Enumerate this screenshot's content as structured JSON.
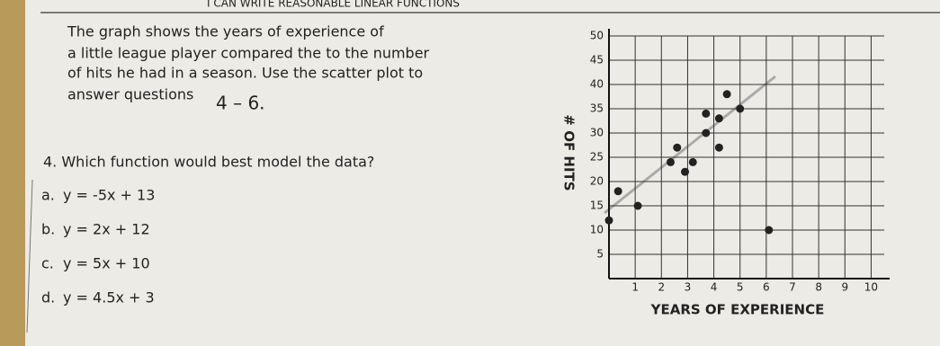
{
  "header": "I CAN WRITE REASONABLE LINEAR FUNCTIONS",
  "intro": [
    "The graph shows the years of experience of",
    "a little league player compared the to the number",
    "of hits he had in a season.  Use the scatter plot to",
    "answer questions"
  ],
  "intro_ref": "4 – 6.",
  "question": "4.  Which function would best model the data?",
  "options": [
    [
      "a.",
      "y = -5x + 13"
    ],
    [
      "b.",
      "y = 2x + 12"
    ],
    [
      "c.",
      "y = 5x + 10"
    ],
    [
      "d.",
      "y = 4.5x + 3"
    ]
  ],
  "chart_data": {
    "type": "scatter",
    "xlabel": "YEARS OF EXPERIENCE",
    "ylabel": "# OF HITS",
    "color": "#222222",
    "grid": true,
    "x": [
      0,
      1.1,
      0.35,
      2.35,
      2.9,
      3.2,
      2.6,
      4.2,
      3.7,
      3.7,
      4.2,
      5,
      4.5,
      6.1
    ],
    "values": [
      12,
      15,
      18,
      24,
      22,
      24,
      27,
      27,
      30,
      34,
      33,
      35,
      38,
      10
    ],
    "xlim": [
      0,
      10.5
    ],
    "ylim": [
      0,
      50
    ],
    "xticks": [
      1,
      2,
      3,
      4,
      5,
      6,
      7,
      8,
      9,
      10
    ],
    "yticks": [
      5,
      10,
      15,
      20,
      25,
      30,
      35,
      40,
      45,
      50
    ]
  }
}
